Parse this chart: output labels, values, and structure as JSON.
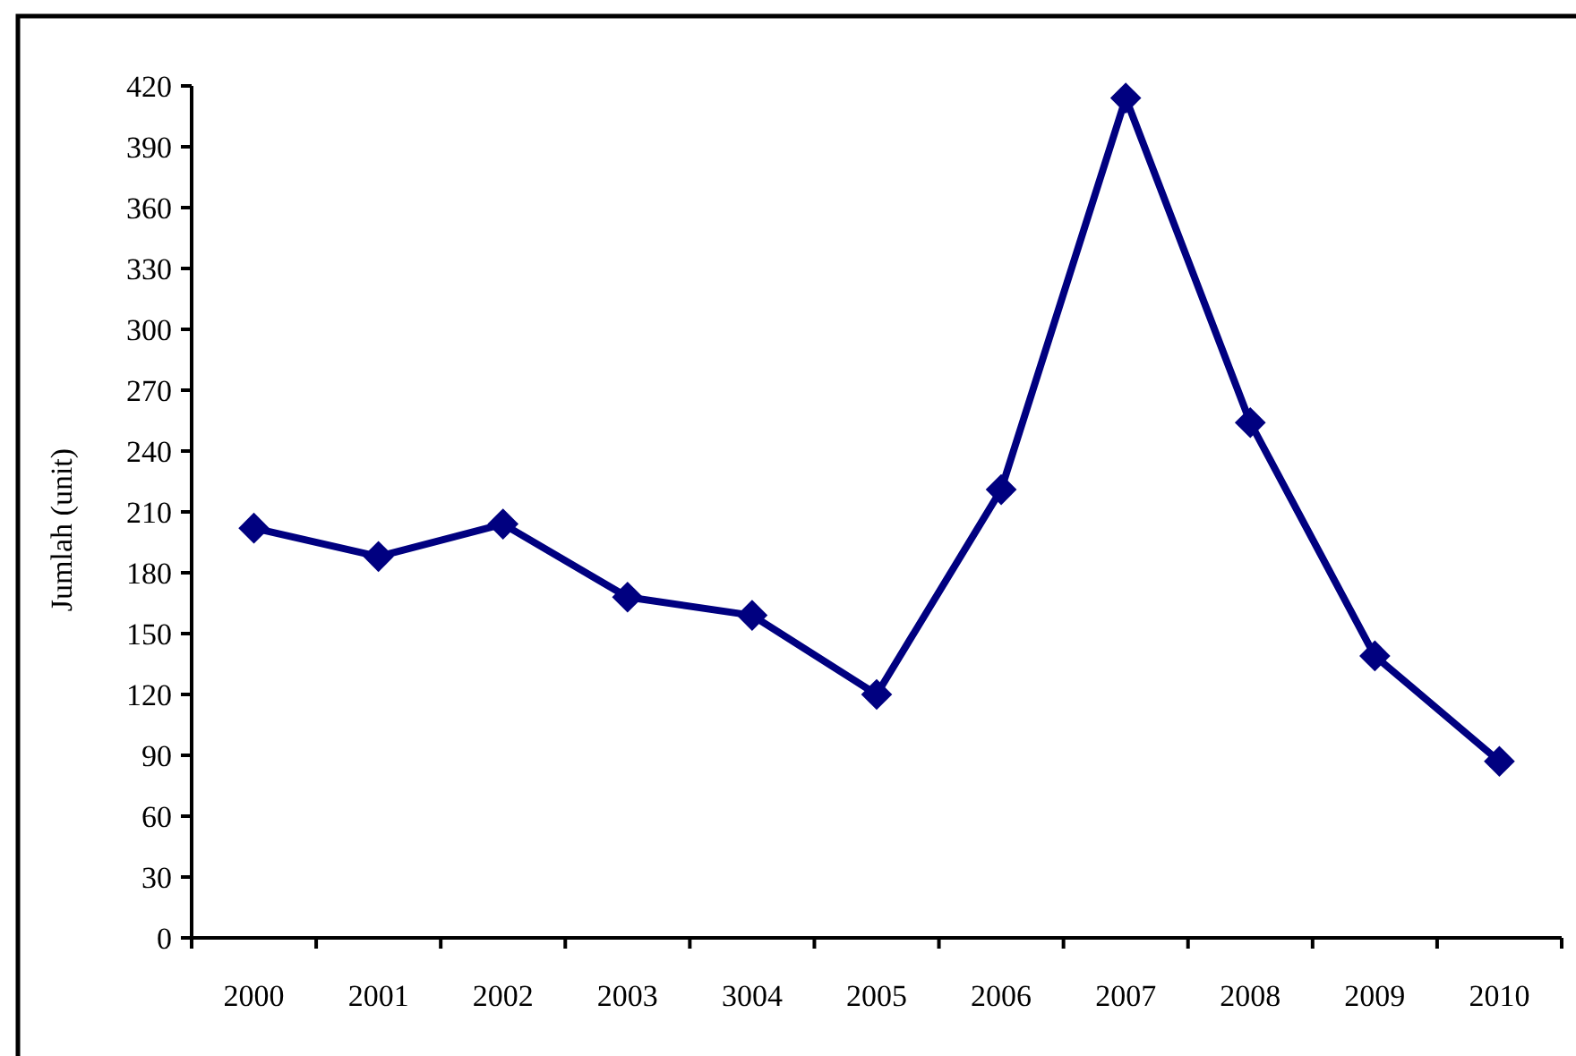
{
  "chart_data": {
    "type": "line",
    "ylabel": "Jumlah (unit)",
    "categories": [
      "2000",
      "2001",
      "2002",
      "2003",
      "3004",
      "2005",
      "2006",
      "2007",
      "2008",
      "2009",
      "2010"
    ],
    "series": [
      {
        "color": "#000080",
        "values": [
          202,
          188,
          204,
          168,
          159,
          120,
          221,
          414,
          254,
          139,
          87
        ]
      }
    ],
    "ylim": [
      0,
      420
    ],
    "yticks": [
      0,
      30,
      60,
      90,
      120,
      150,
      180,
      210,
      240,
      270,
      300,
      330,
      360,
      390,
      420
    ],
    "marker": "diamond",
    "line_style": "solid"
  }
}
